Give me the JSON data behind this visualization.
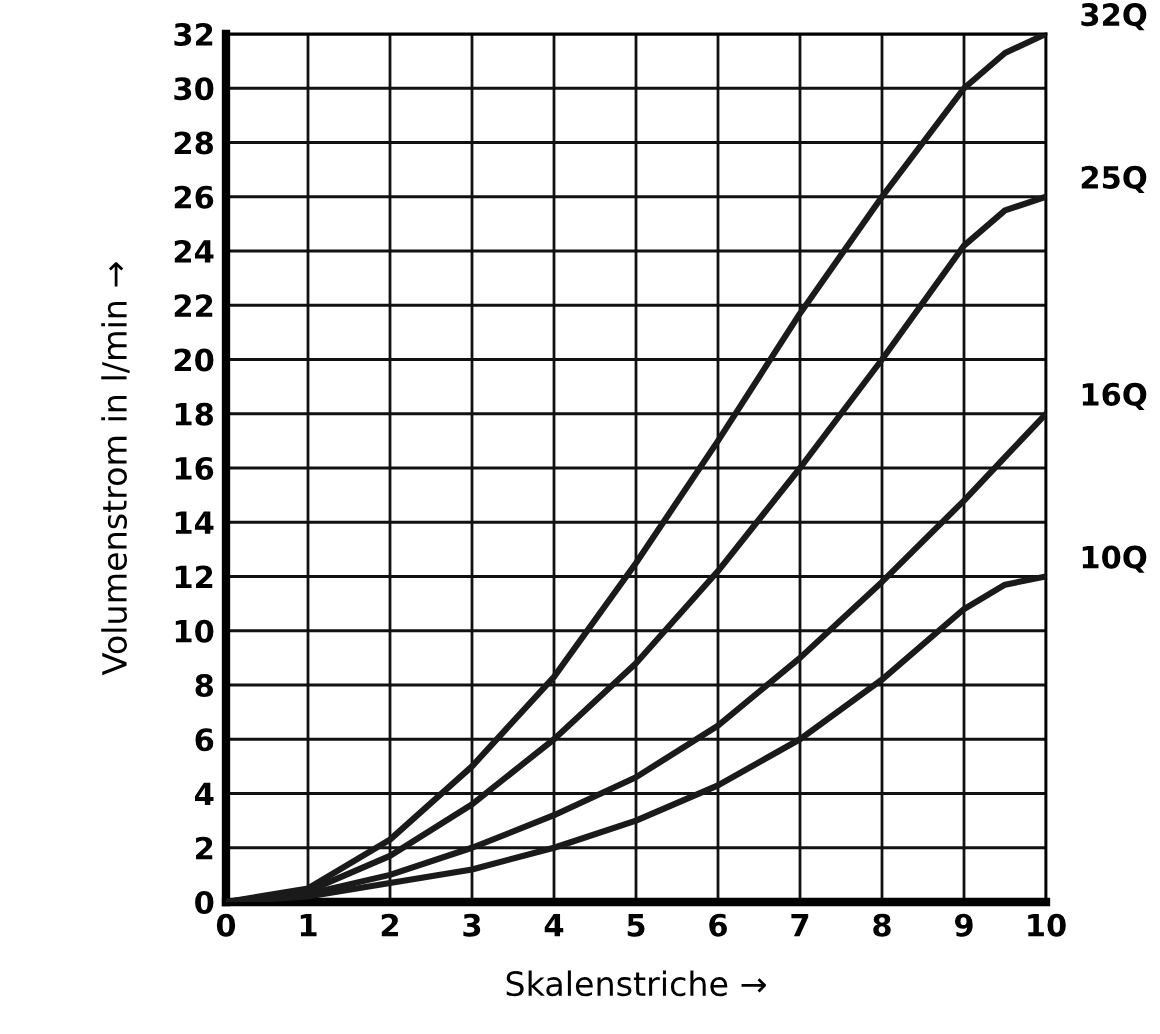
{
  "chart_data": {
    "type": "line",
    "xlabel": "Skalenstriche →",
    "ylabel": "Volumenstrom in l/min →",
    "x": [
      0,
      1,
      2,
      3,
      4,
      5,
      6,
      7,
      8,
      9,
      9.5,
      10
    ],
    "series": [
      {
        "name": "32Q",
        "color": "#1a1a1a",
        "values": [
          0,
          0.5,
          2.3,
          5,
          8.3,
          12.5,
          17,
          21.7,
          26,
          30,
          31.3,
          32
        ]
      },
      {
        "name": "25Q",
        "color": "#1a1a1a",
        "values": [
          0,
          0.4,
          1.7,
          3.6,
          6,
          8.8,
          12.2,
          16,
          20,
          24.2,
          25.5,
          26
        ]
      },
      {
        "name": "16Q",
        "color": "#1a1a1a",
        "values": [
          0,
          0.3,
          1,
          2,
          3.2,
          4.6,
          6.5,
          9,
          11.8,
          14.8,
          16.4,
          18
        ]
      },
      {
        "name": "10Q",
        "color": "#1a1a1a",
        "values": [
          0,
          0.2,
          0.7,
          1.2,
          2,
          3,
          4.3,
          6,
          8.2,
          10.8,
          11.7,
          12
        ]
      }
    ],
    "xlim": [
      0,
      10
    ],
    "ylim": [
      0,
      32
    ],
    "xticks": [
      0,
      1,
      2,
      3,
      4,
      5,
      6,
      7,
      8,
      9,
      10
    ],
    "yticks": [
      0,
      2,
      4,
      6,
      8,
      10,
      12,
      14,
      16,
      18,
      20,
      22,
      24,
      26,
      28,
      30,
      32
    ],
    "grid": true,
    "marker": "none",
    "line_style": "solid"
  }
}
